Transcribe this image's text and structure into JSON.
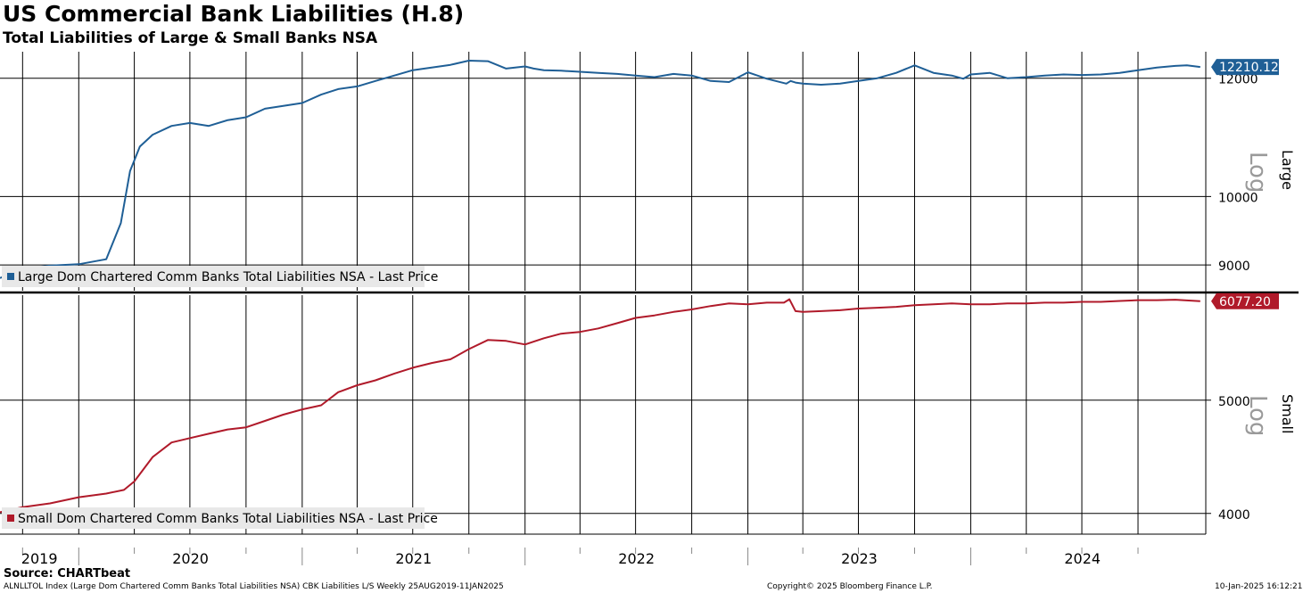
{
  "header": {
    "title": "US Commercial Bank Liabilities (H.8)",
    "subtitle": "Total Liabilities of Large & Small Banks NSA"
  },
  "footer": {
    "source": "Source: CHARTbeat",
    "index_info": "ALNLLTOL Index (Large Dom Chartered Comm Banks Total Liabilities NSA) CBK Liabilities L/S  Weekly 25AUG2019-11JAN2025",
    "copyright": "Copyright© 2025 Bloomberg Finance L.P.",
    "timestamp": "10-Jan-2025 16:12:21"
  },
  "colors": {
    "large": "#1f5f96",
    "small": "#b01a2a",
    "grid": "#000000"
  },
  "chart_data": [
    {
      "type": "line",
      "panel": "Large",
      "scale": "log",
      "scale_label": "Log",
      "ylim": [
        8650,
        12500
      ],
      "yticks": [
        9000,
        10000,
        12000
      ],
      "last_value": "12210.12",
      "legend": "Large Dom Chartered Comm Banks Total Liabilities NSA - Last Price",
      "x": [
        "2019-08-25",
        "2019-10-01",
        "2019-11-15",
        "2020-01-01",
        "2020-02-15",
        "2020-03-10",
        "2020-03-25",
        "2020-04-10",
        "2020-05-01",
        "2020-06-01",
        "2020-07-01",
        "2020-08-01",
        "2020-09-01",
        "2020-10-01",
        "2020-11-01",
        "2020-12-01",
        "2021-01-01",
        "2021-02-01",
        "2021-03-01",
        "2021-04-01",
        "2021-05-01",
        "2021-06-01",
        "2021-07-01",
        "2021-08-01",
        "2021-09-01",
        "2021-10-01",
        "2021-11-01",
        "2021-12-01",
        "2022-01-01",
        "2022-01-15",
        "2022-02-01",
        "2022-03-01",
        "2022-04-01",
        "2022-05-01",
        "2022-06-01",
        "2022-07-01",
        "2022-08-01",
        "2022-09-01",
        "2022-10-01",
        "2022-11-01",
        "2022-12-01",
        "2023-01-01",
        "2023-02-01",
        "2023-03-05",
        "2023-03-12",
        "2023-03-20",
        "2023-04-01",
        "2023-05-01",
        "2023-06-01",
        "2023-07-01",
        "2023-08-01",
        "2023-09-01",
        "2023-10-01",
        "2023-11-01",
        "2023-12-01",
        "2023-12-20",
        "2024-01-01",
        "2024-02-01",
        "2024-03-01",
        "2024-04-01",
        "2024-05-01",
        "2024-06-01",
        "2024-07-01",
        "2024-08-01",
        "2024-09-01",
        "2024-10-01",
        "2024-11-01",
        "2024-12-01",
        "2024-12-20",
        "2025-01-11"
      ],
      "values": [
        8820,
        8950,
        8990,
        9010,
        9080,
        9600,
        10400,
        10800,
        11000,
        11150,
        11200,
        11150,
        11250,
        11300,
        11450,
        11500,
        11550,
        11700,
        11800,
        11850,
        11950,
        12050,
        12150,
        12200,
        12250,
        12330,
        12320,
        12180,
        12220,
        12180,
        12150,
        12140,
        12120,
        12100,
        12080,
        12050,
        12020,
        12080,
        12050,
        11950,
        11930,
        12110,
        11990,
        11900,
        11950,
        11920,
        11900,
        11880,
        11900,
        11950,
        12000,
        12100,
        12240,
        12100,
        12050,
        11990,
        12070,
        12100,
        12000,
        12020,
        12050,
        12070,
        12060,
        12070,
        12100,
        12150,
        12200,
        12230,
        12240,
        12210.12
      ]
    },
    {
      "type": "line",
      "panel": "Small",
      "scale": "log",
      "scale_label": "Log",
      "ylim": [
        3840,
        6150
      ],
      "yticks": [
        4000,
        5000
      ],
      "last_value": "6077.20",
      "legend": "Small Dom Chartered Comm Banks Total Liabilities NSA - Last Price",
      "x": [
        "2019-08-25",
        "2019-10-01",
        "2019-11-15",
        "2020-01-01",
        "2020-02-15",
        "2020-03-15",
        "2020-04-01",
        "2020-05-01",
        "2020-06-01",
        "2020-07-01",
        "2020-08-01",
        "2020-09-01",
        "2020-10-01",
        "2020-11-01",
        "2020-12-01",
        "2021-01-01",
        "2021-02-01",
        "2021-03-01",
        "2021-04-01",
        "2021-05-01",
        "2021-06-01",
        "2021-07-01",
        "2021-08-01",
        "2021-09-01",
        "2021-10-01",
        "2021-11-01",
        "2021-12-01",
        "2022-01-01",
        "2022-02-01",
        "2022-03-01",
        "2022-04-01",
        "2022-05-01",
        "2022-06-01",
        "2022-07-01",
        "2022-08-01",
        "2022-09-01",
        "2022-10-01",
        "2022-11-01",
        "2022-12-01",
        "2023-01-01",
        "2023-02-01",
        "2023-03-01",
        "2023-03-10",
        "2023-03-20",
        "2023-04-01",
        "2023-05-01",
        "2023-06-01",
        "2023-07-01",
        "2023-08-01",
        "2023-09-01",
        "2023-10-01",
        "2023-11-01",
        "2023-12-01",
        "2024-01-01",
        "2024-02-01",
        "2024-03-01",
        "2024-04-01",
        "2024-05-01",
        "2024-06-01",
        "2024-07-01",
        "2024-08-01",
        "2024-09-01",
        "2024-10-01",
        "2024-11-01",
        "2024-12-01",
        "2025-01-11"
      ],
      "values": [
        4010,
        4050,
        4080,
        4130,
        4160,
        4190,
        4260,
        4470,
        4600,
        4640,
        4680,
        4720,
        4740,
        4800,
        4860,
        4910,
        4950,
        5080,
        5150,
        5200,
        5270,
        5330,
        5380,
        5420,
        5530,
        5630,
        5620,
        5580,
        5650,
        5700,
        5720,
        5760,
        5820,
        5880,
        5910,
        5950,
        5980,
        6020,
        6050,
        6040,
        6060,
        6060,
        6100,
        5960,
        5950,
        5960,
        5970,
        5990,
        6000,
        6010,
        6030,
        6040,
        6050,
        6040,
        6040,
        6050,
        6050,
        6060,
        6060,
        6070,
        6070,
        6080,
        6090,
        6090,
        6095,
        6077.2
      ]
    }
  ],
  "x_axis": {
    "years": [
      "2019",
      "2020",
      "2021",
      "2022",
      "2023",
      "2024"
    ]
  }
}
